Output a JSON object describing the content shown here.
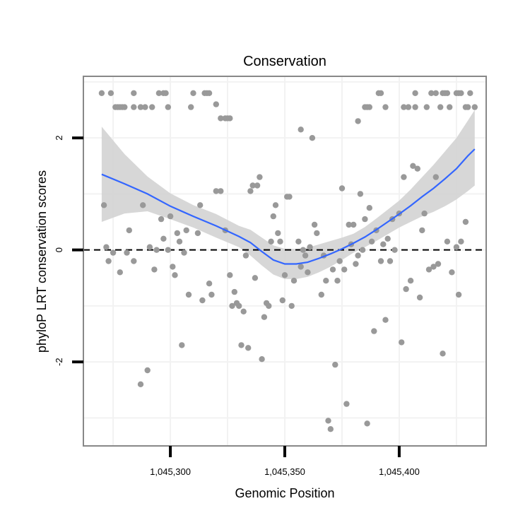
{
  "chart_data": {
    "type": "scatter",
    "title": "Conservation",
    "xlabel": "Genomic Position",
    "ylabel": "phyloP LRT conservation scores",
    "xlim": [
      1045262,
      1045438
    ],
    "ylim": [
      -3.5,
      3.1
    ],
    "x_ticks": [
      1045300,
      1045350,
      1045400
    ],
    "x_tick_labels": [
      "1,045,300",
      "1,045,350",
      "1,045,400"
    ],
    "y_ticks": [
      -2,
      0,
      2
    ],
    "y_tick_labels": [
      "-2",
      "0",
      "2"
    ],
    "grid": true,
    "reference_line": {
      "y": 0,
      "style": "dashed"
    },
    "colors": {
      "points": "#999999",
      "smooth_line": "#3366ff",
      "confidence_band": "#d3d3d3",
      "panel_border": "#888888",
      "grid": "#f2f2f2",
      "reference": "#000000"
    },
    "points": [
      [
        1045270,
        2.8
      ],
      [
        1045274,
        2.8
      ],
      [
        1045276,
        2.55
      ],
      [
        1045277,
        2.55
      ],
      [
        1045278,
        2.55
      ],
      [
        1045279,
        2.55
      ],
      [
        1045280,
        2.55
      ],
      [
        1045284,
        2.8
      ],
      [
        1045284,
        2.55
      ],
      [
        1045287,
        2.55
      ],
      [
        1045289,
        2.55
      ],
      [
        1045292,
        2.55
      ],
      [
        1045295,
        2.8
      ],
      [
        1045297,
        2.8
      ],
      [
        1045298,
        2.8
      ],
      [
        1045299,
        2.55
      ],
      [
        1045309,
        2.55
      ],
      [
        1045310,
        2.8
      ],
      [
        1045315,
        2.8
      ],
      [
        1045316,
        2.8
      ],
      [
        1045317,
        2.8
      ],
      [
        1045320,
        2.6
      ],
      [
        1045322,
        2.35
      ],
      [
        1045324,
        2.35
      ],
      [
        1045325,
        2.35
      ],
      [
        1045326,
        2.35
      ],
      [
        1045357,
        2.15
      ],
      [
        1045362,
        2.0
      ],
      [
        1045382,
        2.3
      ],
      [
        1045385,
        2.55
      ],
      [
        1045386,
        2.55
      ],
      [
        1045387,
        2.55
      ],
      [
        1045391,
        2.8
      ],
      [
        1045392,
        2.8
      ],
      [
        1045394,
        2.55
      ],
      [
        1045402,
        2.55
      ],
      [
        1045404,
        2.55
      ],
      [
        1045407,
        2.55
      ],
      [
        1045407,
        2.8
      ],
      [
        1045412,
        2.55
      ],
      [
        1045414,
        2.8
      ],
      [
        1045416,
        2.8
      ],
      [
        1045418,
        2.55
      ],
      [
        1045419,
        2.8
      ],
      [
        1045420,
        2.8
      ],
      [
        1045421,
        2.8
      ],
      [
        1045422,
        2.55
      ],
      [
        1045425,
        2.8
      ],
      [
        1045426,
        2.8
      ],
      [
        1045427,
        2.8
      ],
      [
        1045429,
        2.55
      ],
      [
        1045430,
        2.55
      ],
      [
        1045431,
        2.8
      ],
      [
        1045433,
        2.55
      ],
      [
        1045271,
        0.8
      ],
      [
        1045272,
        0.05
      ],
      [
        1045273,
        -0.2
      ],
      [
        1045275,
        -0.05
      ],
      [
        1045278,
        -0.4
      ],
      [
        1045281,
        -0.05
      ],
      [
        1045282,
        0.35
      ],
      [
        1045284,
        -0.2
      ],
      [
        1045287,
        -2.4
      ],
      [
        1045288,
        0.8
      ],
      [
        1045290,
        -2.15
      ],
      [
        1045291,
        0.05
      ],
      [
        1045293,
        -0.35
      ],
      [
        1045294,
        0.0
      ],
      [
        1045296,
        0.55
      ],
      [
        1045297,
        0.2
      ],
      [
        1045299,
        0.0
      ],
      [
        1045300,
        0.6
      ],
      [
        1045301,
        -0.3
      ],
      [
        1045302,
        -0.45
      ],
      [
        1045303,
        0.3
      ],
      [
        1045304,
        0.15
      ],
      [
        1045305,
        -1.7
      ],
      [
        1045306,
        -0.05
      ],
      [
        1045307,
        0.35
      ],
      [
        1045308,
        -0.8
      ],
      [
        1045312,
        0.3
      ],
      [
        1045313,
        0.8
      ],
      [
        1045314,
        -0.9
      ],
      [
        1045317,
        -0.6
      ],
      [
        1045318,
        -0.8
      ],
      [
        1045320,
        1.05
      ],
      [
        1045322,
        1.05
      ],
      [
        1045324,
        0.35
      ],
      [
        1045326,
        -0.45
      ],
      [
        1045327,
        -1.0
      ],
      [
        1045328,
        -0.75
      ],
      [
        1045329,
        -0.95
      ],
      [
        1045330,
        -1.0
      ],
      [
        1045331,
        -1.7
      ],
      [
        1045332,
        -1.1
      ],
      [
        1045333,
        -0.1
      ],
      [
        1045334,
        -1.75
      ],
      [
        1045335,
        1.05
      ],
      [
        1045336,
        1.15
      ],
      [
        1045337,
        -0.5
      ],
      [
        1045338,
        1.15
      ],
      [
        1045339,
        1.3
      ],
      [
        1045340,
        -1.95
      ],
      [
        1045341,
        -1.2
      ],
      [
        1045342,
        -0.95
      ],
      [
        1045343,
        -1.0
      ],
      [
        1045344,
        0.15
      ],
      [
        1045345,
        0.6
      ],
      [
        1045346,
        0.8
      ],
      [
        1045347,
        0.3
      ],
      [
        1045348,
        0.15
      ],
      [
        1045349,
        -0.9
      ],
      [
        1045350,
        -0.45
      ],
      [
        1045351,
        0.95
      ],
      [
        1045352,
        0.95
      ],
      [
        1045353,
        -1.0
      ],
      [
        1045354,
        -0.55
      ],
      [
        1045356,
        0.15
      ],
      [
        1045357,
        -0.3
      ],
      [
        1045358,
        0.0
      ],
      [
        1045359,
        -0.1
      ],
      [
        1045360,
        -0.4
      ],
      [
        1045361,
        0.05
      ],
      [
        1045363,
        0.45
      ],
      [
        1045364,
        0.3
      ],
      [
        1045366,
        -0.8
      ],
      [
        1045367,
        -0.1
      ],
      [
        1045368,
        -0.55
      ],
      [
        1045369,
        -3.05
      ],
      [
        1045370,
        -3.2
      ],
      [
        1045371,
        -0.35
      ],
      [
        1045372,
        -2.05
      ],
      [
        1045373,
        -0.55
      ],
      [
        1045374,
        -0.2
      ],
      [
        1045375,
        1.1
      ],
      [
        1045376,
        -0.35
      ],
      [
        1045377,
        -2.75
      ],
      [
        1045378,
        0.45
      ],
      [
        1045379,
        0.1
      ],
      [
        1045380,
        0.45
      ],
      [
        1045381,
        -0.25
      ],
      [
        1045382,
        -0.1
      ],
      [
        1045383,
        1.0
      ],
      [
        1045384,
        0.0
      ],
      [
        1045385,
        0.55
      ],
      [
        1045386,
        -3.1
      ],
      [
        1045387,
        0.75
      ],
      [
        1045388,
        0.15
      ],
      [
        1045389,
        -1.45
      ],
      [
        1045390,
        0.35
      ],
      [
        1045392,
        -0.2
      ],
      [
        1045393,
        0.1
      ],
      [
        1045394,
        -1.25
      ],
      [
        1045395,
        0.2
      ],
      [
        1045396,
        -0.2
      ],
      [
        1045397,
        0.55
      ],
      [
        1045398,
        0.0
      ],
      [
        1045400,
        0.65
      ],
      [
        1045401,
        -1.65
      ],
      [
        1045402,
        1.3
      ],
      [
        1045403,
        -0.7
      ],
      [
        1045405,
        -0.55
      ],
      [
        1045406,
        1.5
      ],
      [
        1045408,
        1.45
      ],
      [
        1045409,
        -0.85
      ],
      [
        1045410,
        0.35
      ],
      [
        1045411,
        0.65
      ],
      [
        1045413,
        -0.35
      ],
      [
        1045415,
        -0.3
      ],
      [
        1045416,
        1.3
      ],
      [
        1045417,
        -0.25
      ],
      [
        1045419,
        -1.85
      ],
      [
        1045421,
        0.15
      ],
      [
        1045423,
        -0.4
      ],
      [
        1045425,
        0.05
      ],
      [
        1045426,
        -0.8
      ],
      [
        1045427,
        0.15
      ],
      [
        1045429,
        0.5
      ]
    ],
    "smooth": {
      "method": "loess",
      "x": [
        1045270,
        1045280,
        1045290,
        1045300,
        1045310,
        1045320,
        1045330,
        1045335,
        1045340,
        1045345,
        1045350,
        1045355,
        1045360,
        1045365,
        1045370,
        1045375,
        1045380,
        1045385,
        1045390,
        1045395,
        1045400,
        1045405,
        1045410,
        1045415,
        1045420,
        1045425,
        1045430,
        1045433
      ],
      "y": [
        1.35,
        1.18,
        1.0,
        0.78,
        0.6,
        0.43,
        0.24,
        0.13,
        -0.03,
        -0.18,
        -0.25,
        -0.25,
        -0.22,
        -0.15,
        -0.07,
        0.02,
        0.12,
        0.23,
        0.36,
        0.5,
        0.64,
        0.79,
        0.95,
        1.1,
        1.27,
        1.45,
        1.68,
        1.8
      ],
      "lower": [
        0.5,
        0.65,
        0.69,
        0.55,
        0.4,
        0.22,
        0.05,
        -0.1,
        -0.28,
        -0.44,
        -0.52,
        -0.52,
        -0.48,
        -0.4,
        -0.3,
        -0.18,
        -0.05,
        0.05,
        0.16,
        0.28,
        0.4,
        0.5,
        0.6,
        0.68,
        0.78,
        0.9,
        1.05,
        1.15
      ],
      "upper": [
        2.2,
        1.71,
        1.31,
        1.01,
        0.8,
        0.64,
        0.43,
        0.36,
        0.22,
        0.08,
        0.02,
        0.02,
        0.04,
        0.1,
        0.16,
        0.22,
        0.29,
        0.41,
        0.56,
        0.72,
        0.88,
        1.08,
        1.3,
        1.52,
        1.76,
        2.0,
        2.31,
        2.5
      ]
    }
  }
}
